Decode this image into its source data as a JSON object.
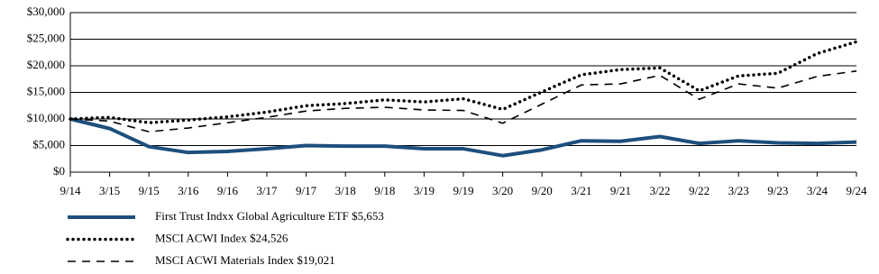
{
  "chart_data": {
    "type": "line",
    "categories": [
      "9/14",
      "3/15",
      "9/15",
      "3/16",
      "9/16",
      "3/17",
      "9/17",
      "3/18",
      "9/18",
      "3/19",
      "9/19",
      "3/20",
      "9/20",
      "3/21",
      "9/21",
      "3/22",
      "9/22",
      "3/23",
      "9/23",
      "3/24",
      "9/24"
    ],
    "series": [
      {
        "name": "First Trust Indxx Global Agriculture ETF $5,653",
        "color": "#1d4f7c",
        "dash": "solid",
        "values": [
          10000,
          8200,
          4800,
          3700,
          3900,
          4400,
          5000,
          4900,
          4900,
          4400,
          4400,
          3100,
          4200,
          5900,
          5800,
          6700,
          5400,
          5900,
          5500,
          5400,
          5653
        ]
      },
      {
        "name": "MSCI ACWI Index $24,526",
        "color": "#000000",
        "dash": "dotted",
        "values": [
          10000,
          10300,
          9300,
          9800,
          10400,
          11300,
          12500,
          12900,
          13600,
          13200,
          13800,
          11800,
          15100,
          18300,
          19300,
          19600,
          15300,
          18100,
          18600,
          22300,
          24526
        ]
      },
      {
        "name": "MSCI ACWI Materials Index $19,021",
        "color": "#000000",
        "dash": "dashed",
        "values": [
          10000,
          9600,
          7600,
          8300,
          9300,
          10300,
          11500,
          12000,
          12200,
          11700,
          11600,
          9200,
          12800,
          16400,
          16600,
          18200,
          13700,
          16600,
          15800,
          18000,
          19021
        ]
      }
    ],
    "ylim": [
      0,
      30000
    ],
    "yticks": [
      {
        "value": 0,
        "label": "$0"
      },
      {
        "value": 5000,
        "label": "$5,000"
      },
      {
        "value": 10000,
        "label": "$10,000"
      },
      {
        "value": 15000,
        "label": "$15,000"
      },
      {
        "value": 20000,
        "label": "$20,000"
      },
      {
        "value": 25000,
        "label": "$25,000"
      },
      {
        "value": 30000,
        "label": "$30,000"
      }
    ],
    "grid": true
  }
}
